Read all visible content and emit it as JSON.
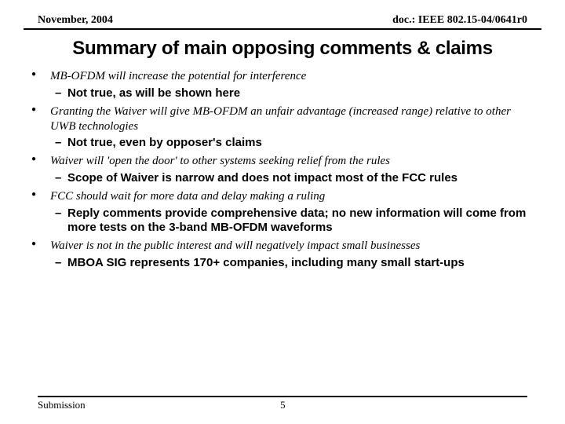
{
  "header": {
    "left": "November, 2004",
    "right": "doc.: IEEE 802.15-04/0641r0"
  },
  "title": "Summary of main opposing comments & claims",
  "items": [
    {
      "claim": "MB-OFDM will increase the potential for interference",
      "reply": "Not true, as will be shown here"
    },
    {
      "claim": "Granting the Waiver will give MB-OFDM an unfair advantage (increased range) relative to other UWB technologies",
      "reply": "Not true, even by opposer's claims"
    },
    {
      "claim": "Waiver will 'open the door' to other systems seeking relief from the rules",
      "reply": "Scope of Waiver is narrow and does not impact most of the FCC rules"
    },
    {
      "claim": "FCC should wait for more data and delay making a ruling",
      "reply": "Reply comments provide comprehensive data; no new information will come from more tests on the 3-band MB-OFDM waveforms"
    },
    {
      "claim": "Waiver is not in the public interest and will negatively impact small businesses",
      "reply": "MBOA SIG represents 170+ companies, including many small start-ups"
    }
  ],
  "footer": {
    "label": "Submission",
    "page": "5"
  }
}
